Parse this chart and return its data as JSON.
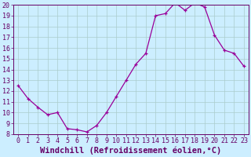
{
  "x": [
    0,
    1,
    2,
    3,
    4,
    5,
    6,
    7,
    8,
    9,
    10,
    11,
    12,
    13,
    14,
    15,
    16,
    17,
    18,
    19,
    20,
    21,
    22,
    23
  ],
  "y": [
    12.5,
    11.3,
    10.5,
    9.8,
    10.0,
    8.5,
    8.4,
    8.2,
    8.8,
    10.0,
    11.5,
    13.0,
    14.5,
    15.5,
    19.0,
    19.2,
    20.2,
    19.5,
    20.2,
    19.8,
    17.2,
    15.8,
    15.5,
    14.3
  ],
  "line_color": "#990099",
  "marker": "+",
  "bg_color": "#cceeff",
  "grid_color": "#aacccc",
  "xlabel": "Windchill (Refroidissement éolien,°C)",
  "ylim": [
    8,
    20
  ],
  "xlim_min": -0.5,
  "xlim_max": 23.5,
  "yticks": [
    8,
    9,
    10,
    11,
    12,
    13,
    14,
    15,
    16,
    17,
    18,
    19,
    20
  ],
  "xticks": [
    0,
    1,
    2,
    3,
    4,
    5,
    6,
    7,
    8,
    9,
    10,
    11,
    12,
    13,
    14,
    15,
    16,
    17,
    18,
    19,
    20,
    21,
    22,
    23
  ],
  "font_color": "#660066",
  "tick_fontsize": 6,
  "label_fontsize": 7.5
}
